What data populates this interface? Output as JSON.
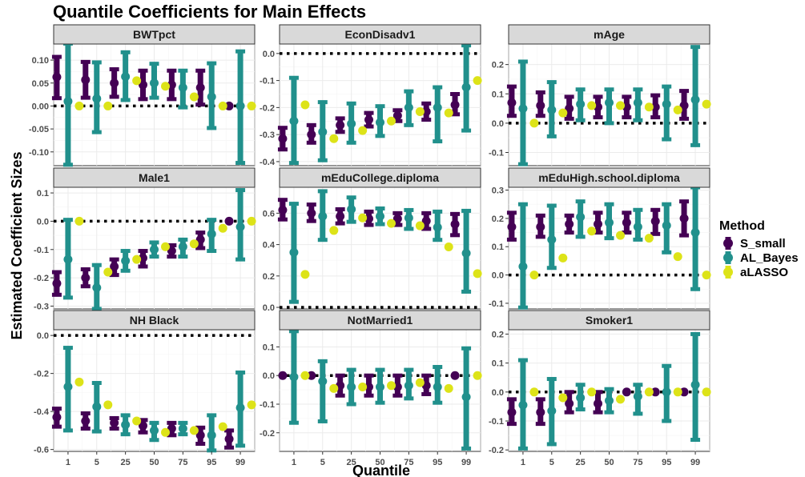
{
  "chart_data": {
    "type": "errorbar",
    "title": "Quantile Coefficients for Main Effects",
    "xlabel": "Quantile",
    "ylabel": "Estimated Coefficient Sizes",
    "categories": [
      "1",
      "5",
      "25",
      "50",
      "75",
      "95",
      "99"
    ],
    "legend": {
      "title": "Method",
      "placement": "right",
      "items": [
        {
          "name": "S_small",
          "color": "#440154"
        },
        {
          "name": "AL_Bayes",
          "color": "#21908C"
        },
        {
          "name": "aLASSO",
          "color": "#DDE318"
        }
      ]
    },
    "reference_line": 0,
    "panels": [
      {
        "name": "BWTpct",
        "ylim": [
          -0.13,
          0.135
        ],
        "yticks": [
          -0.1,
          -0.05,
          0.0,
          0.05,
          0.1
        ],
        "yticklabels": [
          "-0.10",
          "-0.05",
          "0.00",
          "0.05",
          "0.10"
        ],
        "series": [
          {
            "name": "S_small",
            "values": [
              0.063,
              0.057,
              0.05,
              0.046,
              0.046,
              0.04,
              0.0
            ],
            "lower": [
              0.017,
              0.018,
              0.02,
              0.015,
              0.015,
              0.003,
              0.0
            ],
            "upper": [
              0.107,
              0.096,
              0.08,
              0.077,
              0.077,
              0.077,
              0.0
            ]
          },
          {
            "name": "AL_Bayes",
            "values": [
              0.01,
              0.016,
              0.064,
              0.05,
              0.04,
              0.02,
              0.0
            ],
            "lower": [
              -0.128,
              -0.057,
              0.013,
              0.018,
              -0.003,
              -0.048,
              -0.124
            ],
            "upper": [
              0.136,
              0.095,
              0.117,
              0.092,
              0.077,
              0.093,
              0.119
            ]
          },
          {
            "name": "aLASSO",
            "values": [
              0.0,
              0.0,
              0.055,
              0.043,
              0.02,
              0.0,
              0.0
            ]
          }
        ]
      },
      {
        "name": "EconDisadv1",
        "ylim": [
          -0.415,
          0.035
        ],
        "yticks": [
          -0.4,
          -0.3,
          -0.2,
          -0.1,
          0.0
        ],
        "yticklabels": [
          "-0.4",
          "-0.3",
          "-0.2",
          "-0.1",
          "0.0"
        ],
        "series": [
          {
            "name": "S_small",
            "values": [
              -0.315,
              -0.3,
              -0.265,
              -0.245,
              -0.23,
              -0.215,
              -0.19
            ],
            "lower": [
              -0.355,
              -0.33,
              -0.29,
              -0.27,
              -0.25,
              -0.245,
              -0.225
            ],
            "upper": [
              -0.275,
              -0.265,
              -0.24,
              -0.22,
              -0.21,
              -0.185,
              -0.15
            ]
          },
          {
            "name": "AL_Bayes",
            "values": [
              -0.25,
              -0.29,
              -0.26,
              -0.255,
              -0.2,
              -0.2,
              -0.125
            ],
            "lower": [
              -0.405,
              -0.395,
              -0.33,
              -0.305,
              -0.265,
              -0.325,
              -0.285
            ],
            "upper": [
              -0.09,
              -0.18,
              -0.185,
              -0.195,
              -0.14,
              -0.125,
              0.03
            ]
          },
          {
            "name": "aLASSO",
            "values": [
              -0.19,
              -0.315,
              -0.285,
              -0.25,
              -0.215,
              -0.22,
              -0.1
            ]
          }
        ]
      },
      {
        "name": "mAge",
        "ylim": [
          -0.145,
          0.27
        ],
        "yticks": [
          -0.1,
          0.0,
          0.1,
          0.2
        ],
        "yticklabels": [
          "-0.1",
          "0.0",
          "0.1",
          "0.2"
        ],
        "series": [
          {
            "name": "S_small",
            "values": [
              0.07,
              0.06,
              0.05,
              0.055,
              0.055,
              0.055,
              0.06
            ],
            "lower": [
              0.025,
              0.025,
              0.015,
              0.02,
              0.02,
              0.02,
              0.015
            ],
            "upper": [
              0.125,
              0.105,
              0.09,
              0.09,
              0.09,
              0.095,
              0.11
            ]
          },
          {
            "name": "AL_Bayes",
            "values": [
              0.05,
              0.045,
              0.065,
              0.07,
              0.07,
              0.065,
              0.08
            ],
            "lower": [
              -0.14,
              -0.045,
              0.01,
              0.0,
              0.01,
              -0.055,
              -0.075
            ],
            "upper": [
              0.21,
              0.14,
              0.115,
              0.115,
              0.115,
              0.125,
              0.26
            ]
          },
          {
            "name": "aLASSO",
            "values": [
              0.0,
              0.035,
              0.06,
              0.06,
              0.055,
              0.045,
              0.065
            ]
          }
        ]
      },
      {
        "name": "Male1",
        "ylim": [
          -0.31,
          0.12
        ],
        "yticks": [
          -0.3,
          -0.2,
          -0.1,
          0.0,
          0.1
        ],
        "yticklabels": [
          "-0.3",
          "-0.2",
          "-0.1",
          "0.0",
          "0.1"
        ],
        "series": [
          {
            "name": "S_small",
            "values": [
              -0.22,
              -0.2,
              -0.16,
              -0.13,
              -0.105,
              -0.065,
              0.0
            ],
            "lower": [
              -0.26,
              -0.23,
              -0.19,
              -0.16,
              -0.125,
              -0.095,
              0.0
            ],
            "upper": [
              -0.18,
              -0.17,
              -0.135,
              -0.105,
              -0.085,
              -0.04,
              0.0
            ]
          },
          {
            "name": "AL_Bayes",
            "values": [
              -0.135,
              -0.235,
              -0.14,
              -0.1,
              -0.09,
              -0.045,
              -0.02
            ],
            "lower": [
              -0.27,
              -0.31,
              -0.175,
              -0.125,
              -0.125,
              -0.105,
              -0.135
            ],
            "upper": [
              0.005,
              -0.155,
              -0.105,
              -0.075,
              -0.065,
              0.005,
              0.11
            ]
          },
          {
            "name": "aLASSO",
            "values": [
              0.0,
              -0.18,
              -0.135,
              -0.09,
              -0.08,
              -0.025,
              0.0
            ]
          }
        ]
      },
      {
        "name": "mEduCollege.diploma",
        "ylim": [
          -0.01,
          0.765
        ],
        "yticks": [
          0.0,
          0.2,
          0.4,
          0.6
        ],
        "yticklabels": [
          "0.0",
          "0.2",
          "0.4",
          "0.6"
        ],
        "series": [
          {
            "name": "S_small",
            "values": [
              0.62,
              0.6,
              0.58,
              0.565,
              0.565,
              0.55,
              0.53
            ],
            "lower": [
              0.56,
              0.55,
              0.535,
              0.525,
              0.525,
              0.5,
              0.46
            ],
            "upper": [
              0.685,
              0.655,
              0.625,
              0.61,
              0.6,
              0.6,
              0.595
            ]
          },
          {
            "name": "AL_Bayes",
            "values": [
              0.35,
              0.58,
              0.625,
              0.58,
              0.57,
              0.51,
              0.345
            ],
            "lower": [
              0.035,
              0.43,
              0.545,
              0.53,
              0.5,
              0.43,
              0.1
            ],
            "upper": [
              0.66,
              0.74,
              0.7,
              0.63,
              0.62,
              0.61,
              0.615
            ]
          },
          {
            "name": "aLASSO",
            "values": [
              0.21,
              0.49,
              0.57,
              0.535,
              0.52,
              0.385,
              0.215
            ]
          }
        ]
      },
      {
        "name": "mEduHigh.school.diploma",
        "ylim": [
          -0.12,
          0.31
        ],
        "yticks": [
          -0.1,
          0.0,
          0.1,
          0.2,
          0.3
        ],
        "yticklabels": [
          "-0.1",
          "0.0",
          "0.1",
          "0.2",
          "0.3"
        ],
        "series": [
          {
            "name": "S_small",
            "values": [
              0.17,
              0.17,
              0.18,
              0.18,
              0.185,
              0.19,
              0.2
            ],
            "lower": [
              0.125,
              0.135,
              0.15,
              0.15,
              0.15,
              0.145,
              0.14
            ],
            "upper": [
              0.22,
              0.21,
              0.21,
              0.22,
              0.22,
              0.23,
              0.26
            ]
          },
          {
            "name": "AL_Bayes",
            "values": [
              0.03,
              0.125,
              0.205,
              0.185,
              0.17,
              0.175,
              0.15
            ],
            "lower": [
              -0.115,
              0.025,
              0.135,
              0.13,
              0.125,
              0.08,
              -0.05
            ],
            "upper": [
              0.25,
              0.245,
              0.26,
              0.25,
              0.23,
              0.25,
              0.31
            ]
          },
          {
            "name": "aLASSO",
            "values": [
              0.0,
              0.06,
              0.155,
              0.14,
              0.13,
              0.065,
              0.0
            ]
          }
        ]
      },
      {
        "name": "NH Black",
        "ylim": [
          -0.61,
          0.03
        ],
        "yticks": [
          -0.6,
          -0.4,
          -0.2,
          0.0
        ],
        "yticklabels": [
          "-0.6",
          "-0.4",
          "-0.2",
          "0.0"
        ],
        "series": [
          {
            "name": "S_small",
            "values": [
              -0.43,
              -0.45,
              -0.46,
              -0.475,
              -0.49,
              -0.525,
              -0.545
            ],
            "lower": [
              -0.48,
              -0.49,
              -0.49,
              -0.51,
              -0.525,
              -0.57,
              -0.59
            ],
            "upper": [
              -0.385,
              -0.41,
              -0.435,
              -0.445,
              -0.46,
              -0.485,
              -0.5
            ]
          },
          {
            "name": "AL_Bayes",
            "values": [
              -0.27,
              -0.375,
              -0.47,
              -0.5,
              -0.49,
              -0.525,
              -0.38
            ],
            "lower": [
              -0.5,
              -0.505,
              -0.52,
              -0.55,
              -0.52,
              -0.605,
              -0.58
            ],
            "upper": [
              -0.065,
              -0.25,
              -0.42,
              -0.46,
              -0.46,
              -0.42,
              -0.195
            ]
          },
          {
            "name": "aLASSO",
            "values": [
              -0.245,
              -0.365,
              -0.45,
              -0.51,
              -0.5,
              -0.48,
              -0.365
            ]
          }
        ]
      },
      {
        "name": "NotMarried1",
        "ylim": [
          -0.265,
          0.16
        ],
        "yticks": [
          -0.2,
          -0.1,
          0.0,
          0.1
        ],
        "yticklabels": [
          "-0.2",
          "-0.1",
          "0.0",
          "0.1"
        ],
        "series": [
          {
            "name": "S_small",
            "values": [
              0.0,
              0.0,
              -0.035,
              -0.04,
              -0.04,
              -0.035,
              0.0
            ],
            "lower": [
              0.0,
              0.0,
              -0.07,
              -0.07,
              -0.07,
              -0.065,
              0.0
            ],
            "upper": [
              0.0,
              0.0,
              0.0,
              0.0,
              0.0,
              0.0,
              0.0
            ]
          },
          {
            "name": "AL_Bayes",
            "values": [
              -0.005,
              -0.02,
              -0.04,
              -0.04,
              -0.035,
              -0.04,
              -0.075
            ],
            "lower": [
              -0.165,
              -0.16,
              -0.1,
              -0.095,
              -0.08,
              -0.095,
              -0.255
            ],
            "upper": [
              0.155,
              0.05,
              0.02,
              0.02,
              0.02,
              0.03,
              0.095
            ]
          },
          {
            "name": "aLASSO",
            "values": [
              0.0,
              -0.045,
              -0.04,
              -0.035,
              -0.025,
              -0.045,
              0.0
            ]
          }
        ]
      },
      {
        "name": "Smoker1",
        "ylim": [
          -0.205,
          0.215
        ],
        "yticks": [
          -0.2,
          -0.1,
          0.0,
          0.1,
          0.2
        ],
        "yticklabels": [
          "-0.2",
          "-0.1",
          "0.0",
          "0.1",
          "0.2"
        ],
        "series": [
          {
            "name": "S_small",
            "values": [
              -0.07,
              -0.07,
              -0.04,
              -0.04,
              0.0,
              0.0,
              0.0
            ],
            "lower": [
              -0.11,
              -0.11,
              -0.07,
              -0.07,
              0.0,
              0.0,
              0.0
            ],
            "upper": [
              -0.025,
              -0.025,
              0.0,
              0.0,
              0.0,
              0.0,
              0.0
            ]
          },
          {
            "name": "AL_Bayes",
            "values": [
              -0.045,
              -0.065,
              -0.02,
              -0.03,
              -0.015,
              0.0,
              0.025
            ],
            "lower": [
              -0.195,
              -0.18,
              -0.06,
              -0.07,
              -0.075,
              -0.1,
              -0.165
            ],
            "upper": [
              0.11,
              0.045,
              0.025,
              0.01,
              0.025,
              0.09,
              0.2
            ]
          },
          {
            "name": "aLASSO",
            "values": [
              0.0,
              -0.02,
              0.0,
              -0.025,
              0.0,
              0.0,
              0.0
            ]
          }
        ]
      }
    ]
  }
}
